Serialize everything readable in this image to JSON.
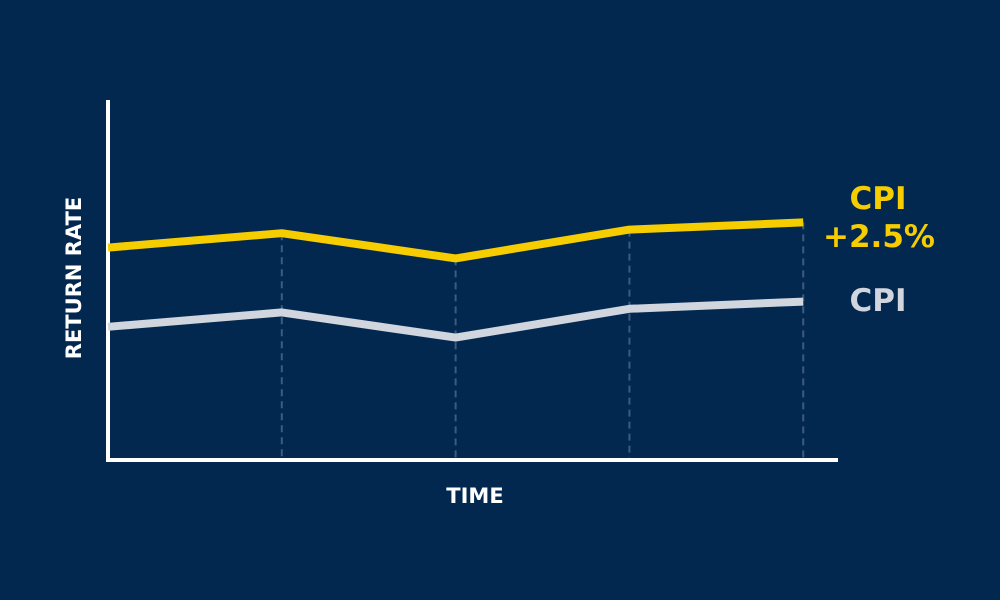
{
  "chart_data": {
    "type": "line",
    "x_label": "TIME",
    "y_label": "RETURN RATE",
    "x": [
      0,
      1,
      2,
      3,
      4
    ],
    "xlim": [
      0,
      4.2
    ],
    "ylim": [
      0,
      100
    ],
    "series": [
      {
        "name": "CPI +2.5%",
        "color": "#f5cd00",
        "values": [
          59,
          63,
          56,
          64,
          66
        ]
      },
      {
        "name": "CPI",
        "color": "#d0d5de",
        "values": [
          37,
          41,
          34,
          42,
          44
        ]
      }
    ],
    "grid_color": "#3d5a80",
    "axis_color": "#ffffff"
  }
}
